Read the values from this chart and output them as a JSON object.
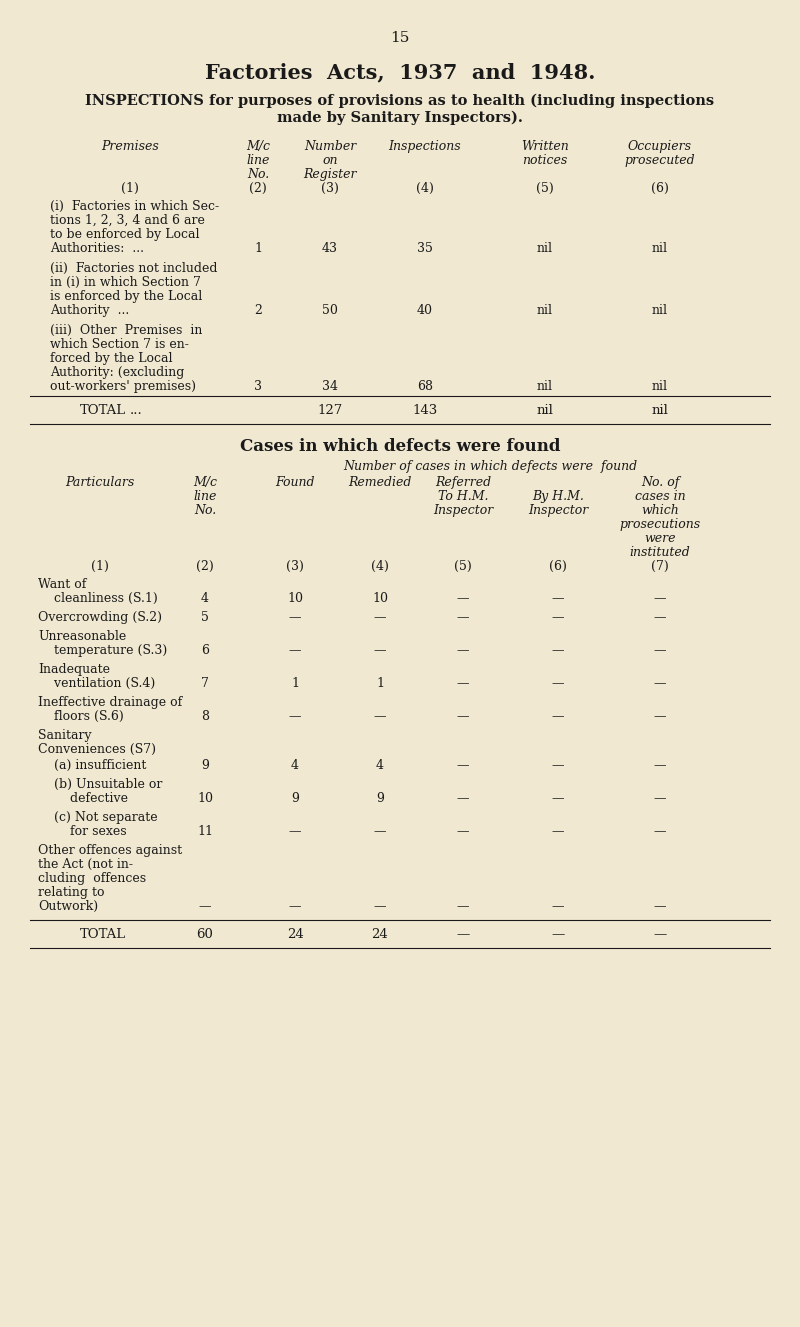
{
  "bg_color": "#f0e8d0",
  "text_color": "#1a1a1a",
  "page_number": "15",
  "title": "Factories  Acts,  1937  and  1948.",
  "sub1": "INSPECTIONS for purposes of provisions as to health (including inspections",
  "sub2": "made by Sanitary Inspectors).",
  "fig_w": 8.0,
  "fig_h": 13.27,
  "dpi": 100
}
